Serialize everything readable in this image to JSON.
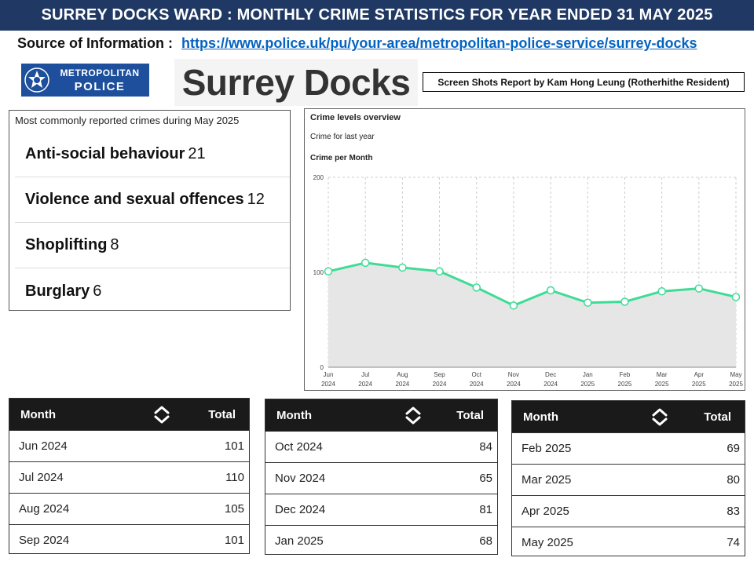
{
  "banner": {
    "title": "SURREY DOCKS WARD :  MONTHLY CRIME STATISTICS FOR YEAR ENDED 31 MAY 2025"
  },
  "source": {
    "label": "Source of Information :",
    "url": "https://www.police.uk/pu/your-area/metropolitan-police-service/surrey-docks"
  },
  "logo": {
    "line1": "METROPOLITAN",
    "line2": "POLICE"
  },
  "place": {
    "title": "Surrey Docks"
  },
  "report": {
    "credit": "Screen Shots Report by Kam Hong Leung (Rotherhithe Resident)"
  },
  "common_crimes": {
    "heading": "Most commonly reported crimes during May 2025",
    "items": [
      {
        "name": "Anti-social behaviour",
        "count": "21"
      },
      {
        "name": "Violence and sexual offences",
        "count": "12"
      },
      {
        "name": "Shoplifting",
        "count": "8"
      },
      {
        "name": "Burglary",
        "count": "6"
      }
    ]
  },
  "chart_header": {
    "title": "Crime levels overview",
    "subtitle": "Crime for last year",
    "section": "Crime per Month"
  },
  "chart_data": {
    "type": "area",
    "title": "Crime per Month",
    "categories": [
      "Jun 2024",
      "Jul 2024",
      "Aug 2024",
      "Sep 2024",
      "Oct 2024",
      "Nov 2024",
      "Dec 2024",
      "Jan 2025",
      "Feb 2025",
      "Mar 2025",
      "Apr 2025",
      "May 2025"
    ],
    "tick_month": [
      "Jun",
      "Jul",
      "Aug",
      "Sep",
      "Oct",
      "Nov",
      "Dec",
      "Jan",
      "Feb",
      "Mar",
      "Apr",
      "May"
    ],
    "tick_year": [
      "2024",
      "2024",
      "2024",
      "2024",
      "2024",
      "2024",
      "2024",
      "2025",
      "2025",
      "2025",
      "2025",
      "2025"
    ],
    "series": [
      {
        "name": "Crime",
        "values": [
          101,
          110,
          105,
          101,
          84,
          65,
          81,
          68,
          69,
          80,
          83,
          74
        ]
      }
    ],
    "ylim": [
      0,
      200
    ],
    "yticks": [
      0,
      100,
      200
    ],
    "xlabel": "",
    "ylabel": "",
    "grid": true,
    "colors": {
      "line": "#3ddc97",
      "fill": "#e6e6e6",
      "grid": "#cccccc"
    }
  },
  "tables": {
    "header_month": "Month",
    "header_total": "Total",
    "groups": [
      [
        {
          "month": "Jun 2024",
          "total": "101"
        },
        {
          "month": "Jul 2024",
          "total": "110"
        },
        {
          "month": "Aug 2024",
          "total": "105"
        },
        {
          "month": "Sep 2024",
          "total": "101"
        }
      ],
      [
        {
          "month": "Oct 2024",
          "total": "84"
        },
        {
          "month": "Nov 2024",
          "total": "65"
        },
        {
          "month": "Dec 2024",
          "total": "81"
        },
        {
          "month": "Jan 2025",
          "total": "68"
        }
      ],
      [
        {
          "month": "Feb 2025",
          "total": "69"
        },
        {
          "month": "Mar 2025",
          "total": "80"
        },
        {
          "month": "Apr 2025",
          "total": "83"
        },
        {
          "month": "May 2025",
          "total": "74"
        }
      ]
    ]
  }
}
